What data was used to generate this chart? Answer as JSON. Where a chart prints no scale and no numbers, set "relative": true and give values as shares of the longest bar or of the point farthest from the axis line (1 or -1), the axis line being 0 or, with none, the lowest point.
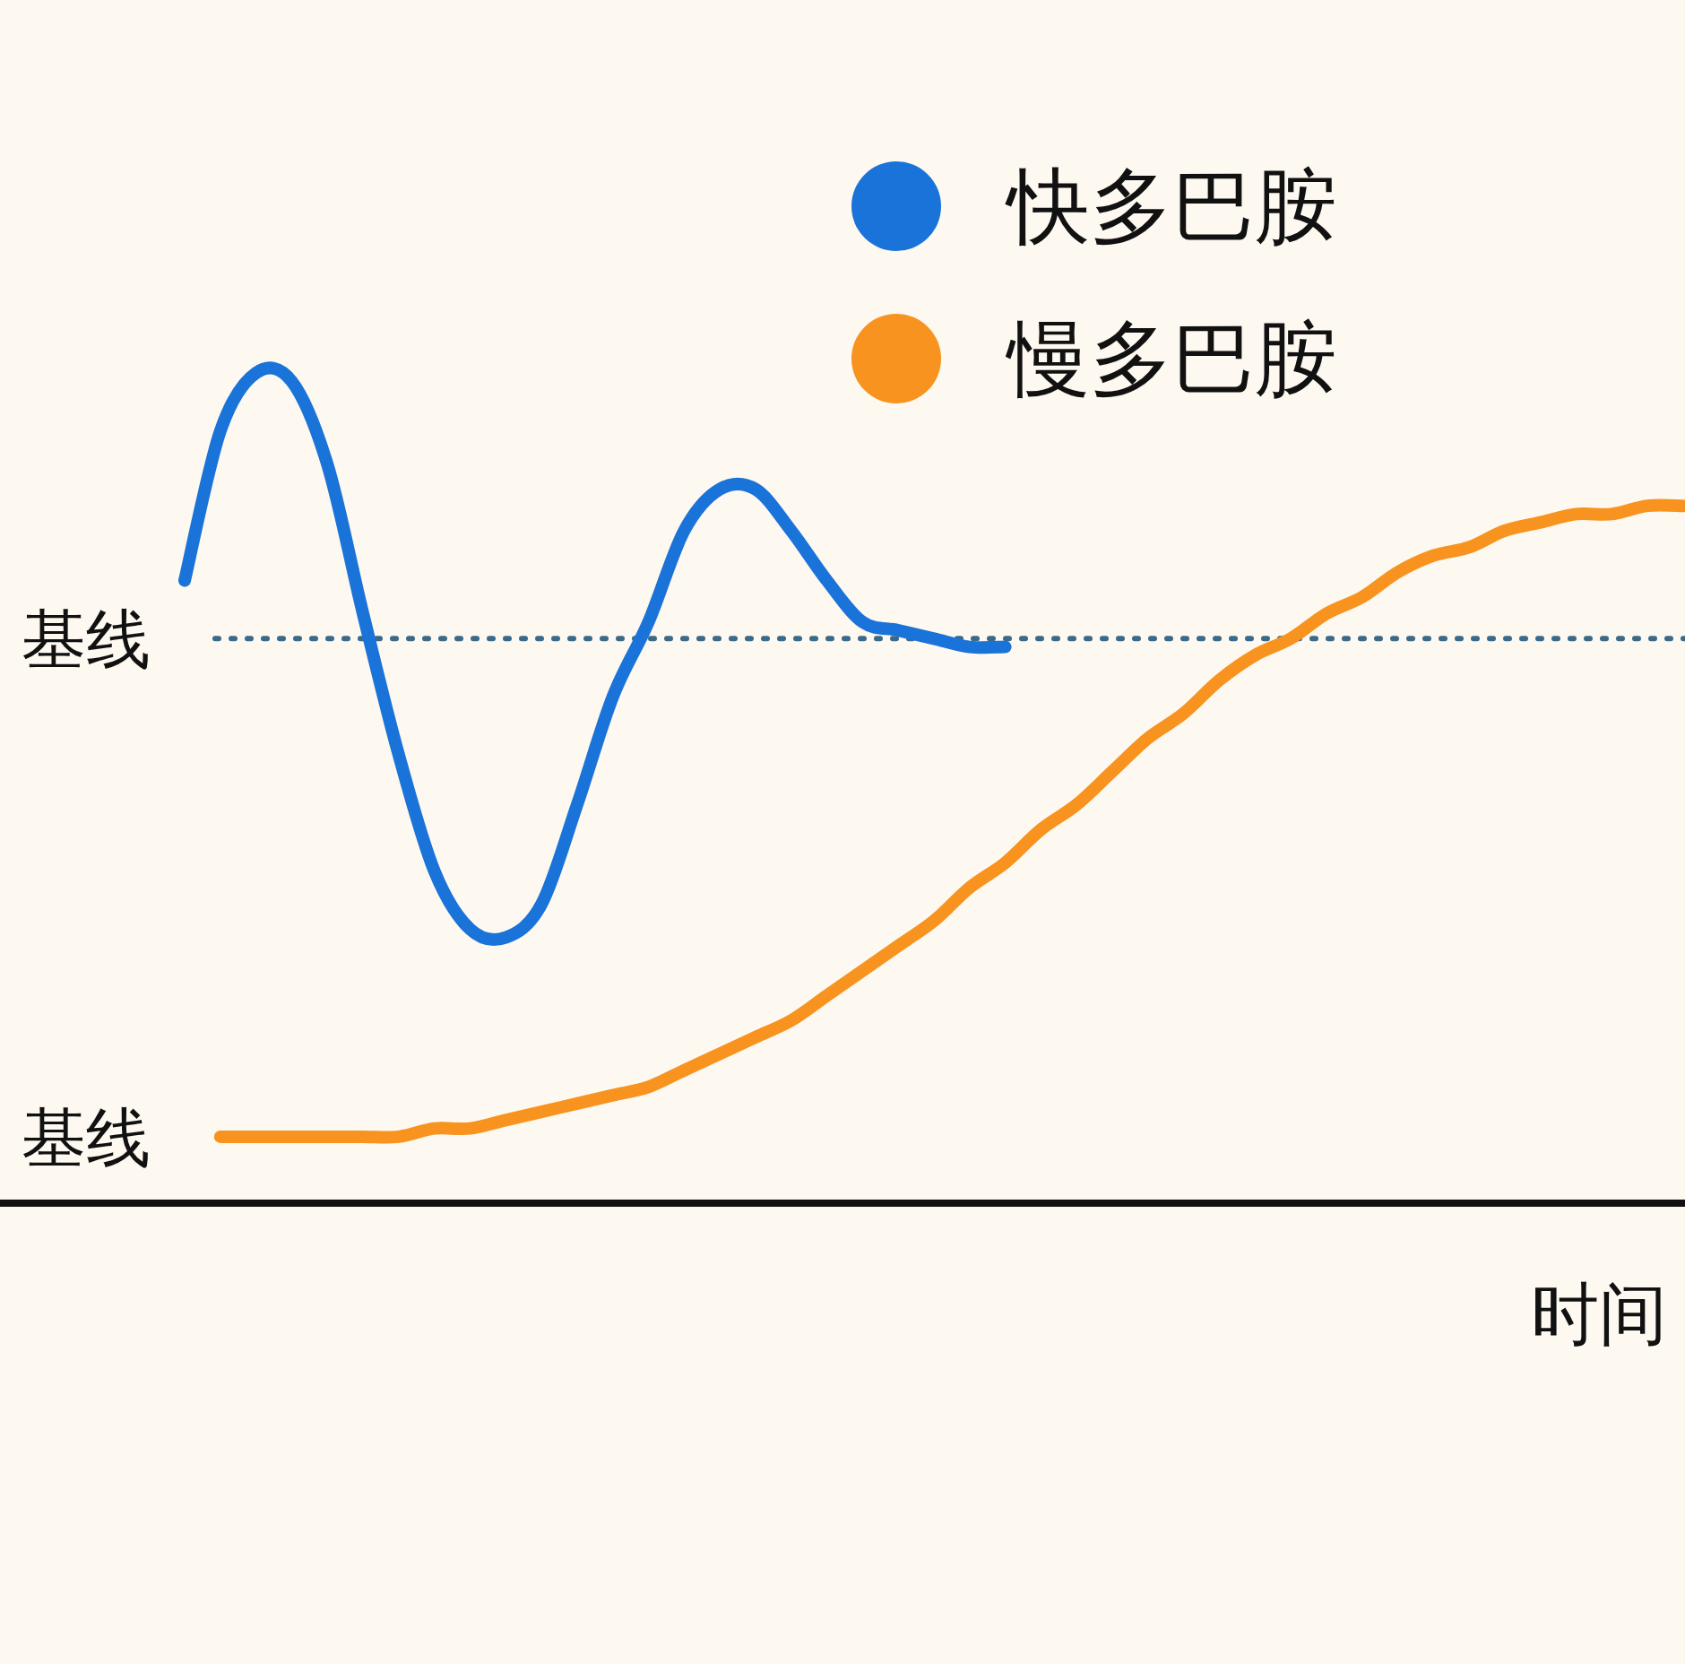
{
  "chart_data": {
    "type": "line",
    "relative": true,
    "xlabel": "时间",
    "legend": "top",
    "categories": [
      null,
      null,
      null,
      null,
      null,
      null,
      null,
      null,
      null,
      null,
      null,
      null,
      null,
      null,
      null,
      null,
      null,
      null,
      null,
      null,
      null,
      null,
      null,
      null,
      null,
      null,
      null,
      null,
      null,
      null,
      null,
      null,
      null,
      null,
      null,
      null,
      null,
      null,
      null,
      null,
      null,
      null,
      null
    ],
    "series": [
      {
        "name": "快多巴胺",
        "color": "#1a73d9",
        "values": [
          0.75,
          0.93,
          1.0,
          0.99,
          0.89,
          0.71,
          0.54,
          0.4,
          0.33,
          0.32,
          0.36,
          0.48,
          0.61,
          0.7,
          0.81,
          0.86,
          0.86,
          0.81,
          0.75,
          0.7,
          0.69,
          0.68,
          0.67,
          0.67,
          null,
          null,
          null,
          null,
          null,
          null,
          null,
          null,
          null,
          null,
          null,
          null,
          null,
          null,
          null,
          null,
          null,
          null,
          null
        ]
      },
      {
        "name": "慢多巴胺",
        "color": "#f7931e",
        "values": [
          null,
          0.08,
          0.08,
          0.08,
          0.08,
          0.08,
          0.08,
          0.09,
          0.09,
          0.1,
          0.11,
          0.12,
          0.13,
          0.14,
          0.16,
          0.18,
          0.2,
          0.22,
          0.25,
          0.28,
          0.31,
          0.34,
          0.38,
          0.41,
          0.45,
          0.48,
          0.52,
          0.56,
          0.59,
          0.63,
          0.66,
          0.68,
          0.71,
          0.73,
          0.76,
          0.78,
          0.79,
          0.81,
          0.82,
          0.83,
          0.83,
          0.84,
          0.84
        ]
      }
    ],
    "ref_lines": [
      {
        "axis": "y",
        "value": 0.68,
        "label": "基线",
        "color": "#3a6a8a",
        "line_style": "dotted"
      }
    ],
    "annotations": [
      "基线"
    ]
  }
}
